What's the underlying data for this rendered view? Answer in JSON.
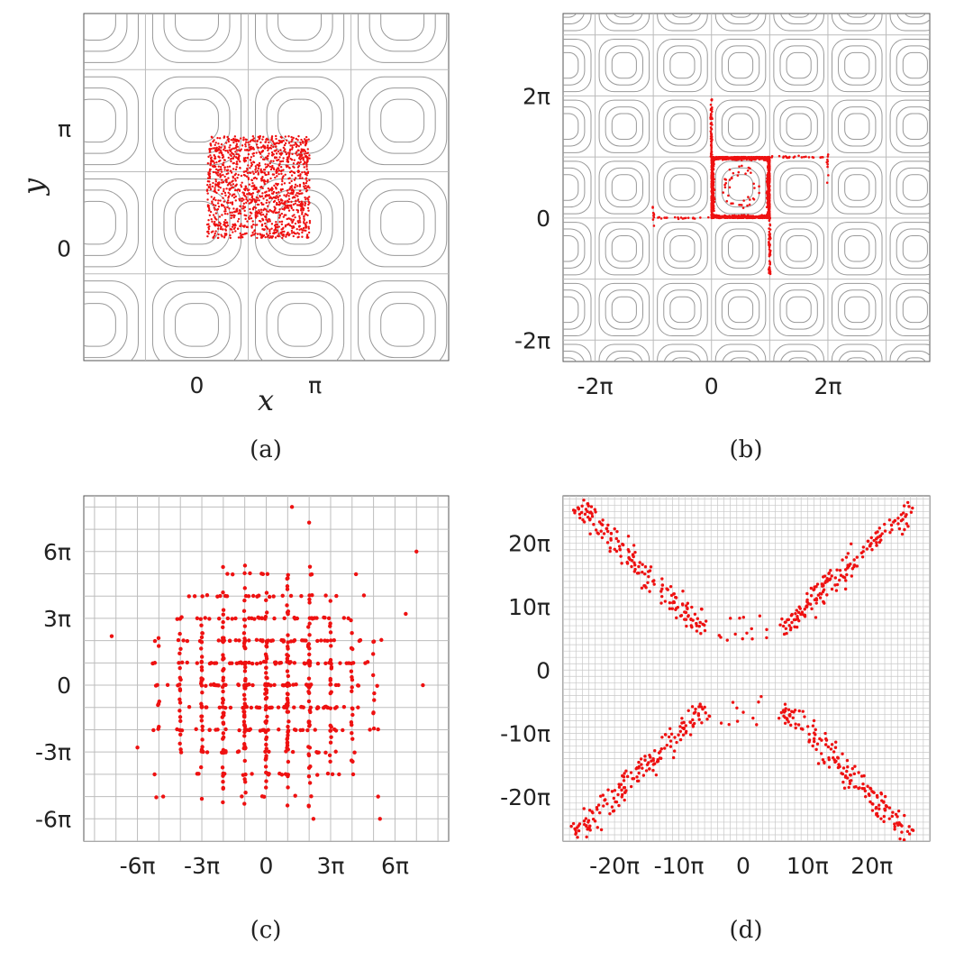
{
  "chart_data": [
    {
      "id": "a",
      "type": "scatter",
      "caption": "(a)",
      "xlabel": "x",
      "ylabel": "y",
      "xlim": [
        -2.2,
        4.9
      ],
      "ylim": [
        -2.2,
        4.6
      ],
      "grid_lines_x": [
        -1.0,
        1.0,
        3.0
      ],
      "grid_lines_y": [
        -0.5,
        1.5,
        3.5
      ],
      "xticks": [
        {
          "v": 0.0,
          "label": "0"
        },
        {
          "v": 2.3,
          "label": "π"
        }
      ],
      "yticks": [
        {
          "v": 0.0,
          "label": "0"
        },
        {
          "v": 2.35,
          "label": "π"
        }
      ],
      "background": "cellular-flow streamline contours",
      "series": [
        {
          "values": "≈1500 red particles uniformly filling the central square x∈[0.2, 2.2], y∈[0.2, 2.2]",
          "color": "#ee1111"
        }
      ]
    },
    {
      "id": "b",
      "type": "scatter",
      "caption": "(b)",
      "xlim": [
        -2.55,
        3.75
      ],
      "ylim": [
        -2.35,
        3.35
      ],
      "grid_lines_x": [
        -1.0,
        0.0,
        1.0,
        2.0
      ],
      "grid_lines_y": [
        -1.0,
        0.0,
        1.0,
        2.0
      ],
      "xticks": [
        {
          "v": -2.0,
          "label": "-2π"
        },
        {
          "v": 0.0,
          "label": "0"
        },
        {
          "v": 2.0,
          "label": "2π"
        }
      ],
      "yticks": [
        {
          "v": -2.0,
          "label": "-2π"
        },
        {
          "v": 0.0,
          "label": "0"
        },
        {
          "v": 2.0,
          "label": "2π"
        }
      ],
      "background": "cellular-flow streamline contours",
      "series": [
        {
          "values": "particles concentrated on the boundary of cell x∈[0,1], y∈[0,1] (units of 2π), sparse filaments escaping along neighbouring separatrices",
          "color": "#ee1111"
        }
      ]
    },
    {
      "id": "c",
      "type": "scatter",
      "caption": "(c)",
      "xlim": [
        -8.5,
        8.5
      ],
      "ylim": [
        -7.0,
        8.5
      ],
      "grid_step": 1,
      "xticks": [
        {
          "v": -6,
          "label": "-6π"
        },
        {
          "v": -3,
          "label": "-3π"
        },
        {
          "v": 0,
          "label": "0"
        },
        {
          "v": 3,
          "label": "3π"
        },
        {
          "v": 6,
          "label": "6π"
        }
      ],
      "yticks": [
        {
          "v": -6,
          "label": "-6π"
        },
        {
          "v": -3,
          "label": "-3π"
        },
        {
          "v": 0,
          "label": "0"
        },
        {
          "v": 3,
          "label": "3π"
        },
        {
          "v": 6,
          "label": "6π"
        }
      ],
      "series": [
        {
          "values": "particles clustered on a lattice of cell corners, spread roughly over ±6π, densest near the origin",
          "color": "#ee1111"
        }
      ]
    },
    {
      "id": "d",
      "type": "scatter",
      "caption": "(d)",
      "xlim": [
        -28,
        29
      ],
      "ylim": [
        -27,
        27.5
      ],
      "grid_step": 1,
      "xticks": [
        {
          "v": -20,
          "label": "-20π"
        },
        {
          "v": -10,
          "label": "-10π"
        },
        {
          "v": 0,
          "label": "0"
        },
        {
          "v": 10,
          "label": "10π"
        },
        {
          "v": 20,
          "label": "20π"
        }
      ],
      "yticks": [
        {
          "v": -20,
          "label": "-20π"
        },
        {
          "v": -10,
          "label": "-10π"
        },
        {
          "v": 0,
          "label": "0"
        },
        {
          "v": 10,
          "label": "10π"
        },
        {
          "v": 20,
          "label": "20π"
        }
      ],
      "series": [
        {
          "values": "particles spread along the two diagonals in four lobes, reaching about ±25π",
          "color": "#ee1111"
        }
      ]
    }
  ]
}
